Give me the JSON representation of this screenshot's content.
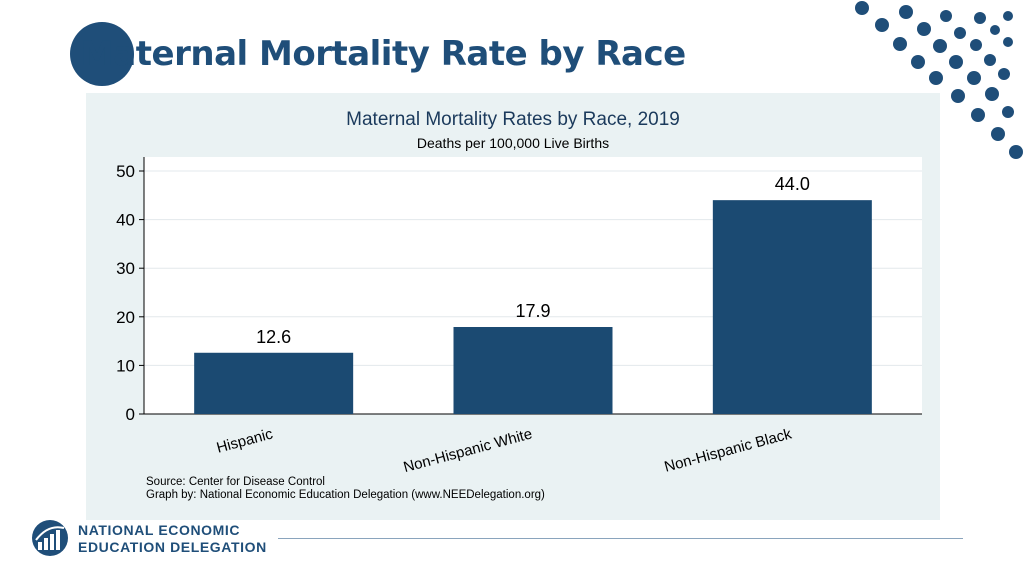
{
  "slide": {
    "title": "Maternal Mortality Rate by Race"
  },
  "chart_data": {
    "type": "bar",
    "title": "Maternal Mortality Rates by Race, 2019",
    "subtitle": "Deaths per 100,000 Live Births",
    "categories": [
      "Hispanic",
      "Non-Hispanic White",
      "Non-Hispanic Black"
    ],
    "values": [
      12.6,
      17.9,
      44.0
    ],
    "value_labels": [
      "12.6",
      "17.9",
      "44.0"
    ],
    "xlabel": "",
    "ylabel": "",
    "ylim": [
      0,
      50
    ],
    "yticks": [
      0,
      10,
      20,
      30,
      40,
      50
    ],
    "grid": true,
    "bar_color": "#1b4a72",
    "source": "Source: Center for Disease Control",
    "credit": "Graph by: National Economic Education Delegation (www.NEEDelegation.org)"
  },
  "footer": {
    "org_line1": "NATIONAL ECONOMIC",
    "org_line2": "EDUCATION DELEGATION"
  },
  "colors": {
    "brand_blue": "#1f4e79",
    "panel_bg": "#eaf2f3"
  }
}
